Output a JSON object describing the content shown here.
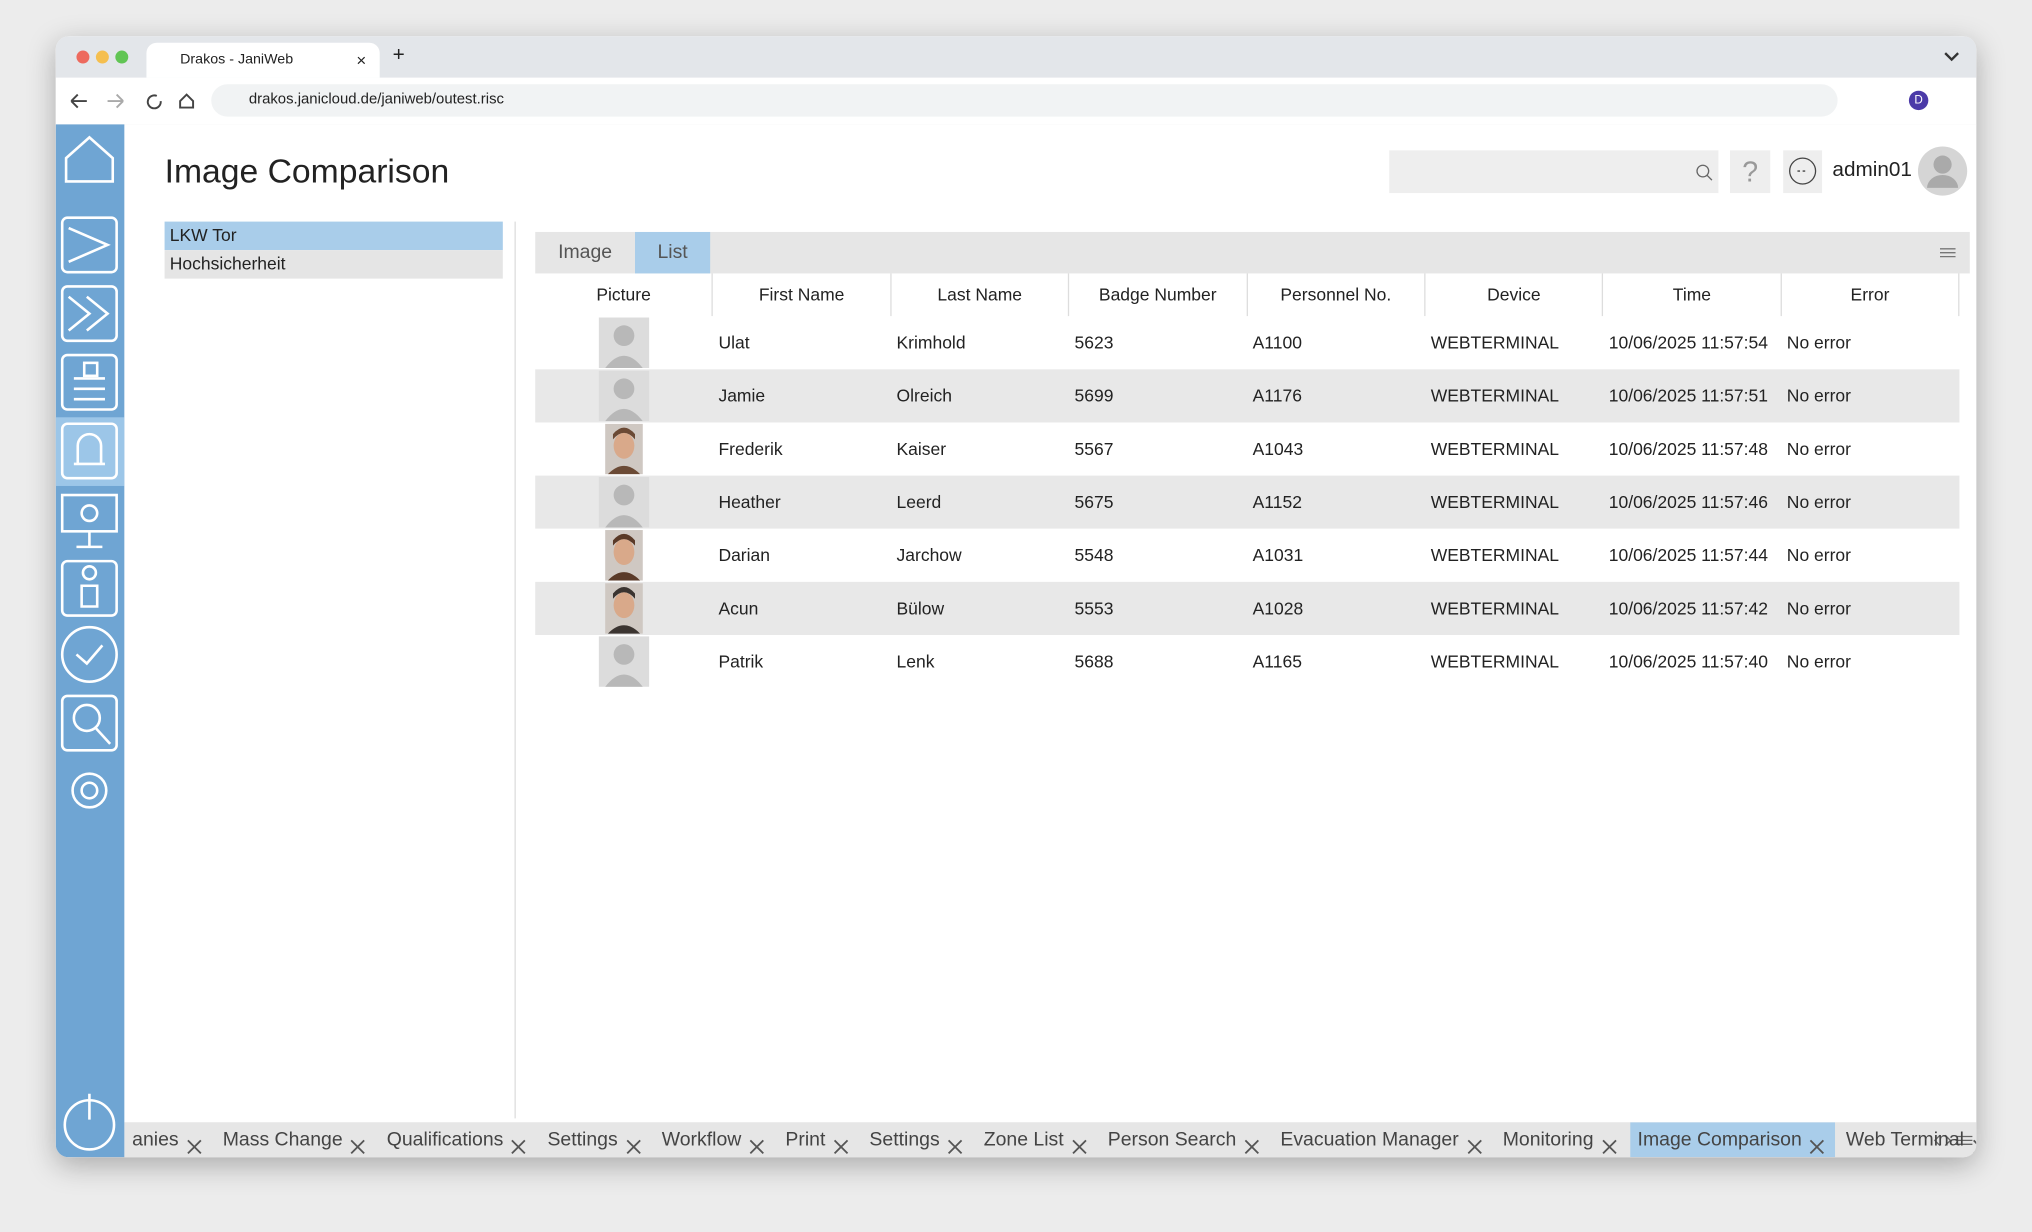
{
  "browser": {
    "tab_title": "Drakos - JaniWeb",
    "url": "drakos.janicloud.de/janiweb/outest.risc",
    "profile_initial": "D"
  },
  "header": {
    "title": "Image Comparison",
    "user": "admin01"
  },
  "terminals": [
    "LKW Tor",
    "Hochsicherheit"
  ],
  "view_tabs": [
    "Image",
    "List"
  ],
  "table": {
    "columns": [
      "Picture",
      "First Name",
      "Last Name",
      "Badge Number",
      "Personnel No.",
      "Device",
      "Time",
      "Error"
    ],
    "rows": [
      [
        "Ulat",
        "Krimhold",
        5623,
        "A1100",
        "WEBTERMINAL",
        "10/06/2025 11:57:54",
        "No error"
      ],
      [
        "Jamie",
        "Olreich",
        5699,
        "A1176",
        "WEBTERMINAL",
        "10/06/2025 11:57:51",
        "No error"
      ],
      [
        "Frederik",
        "Kaiser",
        5567,
        "A1043",
        "WEBTERMINAL",
        "10/06/2025 11:57:48",
        "No error"
      ],
      [
        "Heather",
        "Leerd",
        5675,
        "A1152",
        "WEBTERMINAL",
        "10/06/2025 11:57:46",
        "No error"
      ],
      [
        "Darian",
        "Jarchow",
        5548,
        "A1031",
        "WEBTERMINAL",
        "10/06/2025 11:57:44",
        "No error"
      ],
      [
        "Acun",
        "Bülow",
        5553,
        "A1028",
        "WEBTERMINAL",
        "10/06/2025 11:57:42",
        "No error"
      ],
      [
        "Patrik",
        "Lenk",
        5688,
        "A1165",
        "WEBTERMINAL",
        "10/06/2025 11:57:40",
        "No error"
      ]
    ]
  },
  "bottom_tabs": [
    "anies",
    "Mass Change",
    "Qualifications",
    "Settings",
    "Workflow",
    "Print",
    "Settings",
    "Zone List",
    "Person Search",
    "Evacuation Manager",
    "Monitoring",
    "Image Comparison",
    "Web Terminal"
  ]
}
